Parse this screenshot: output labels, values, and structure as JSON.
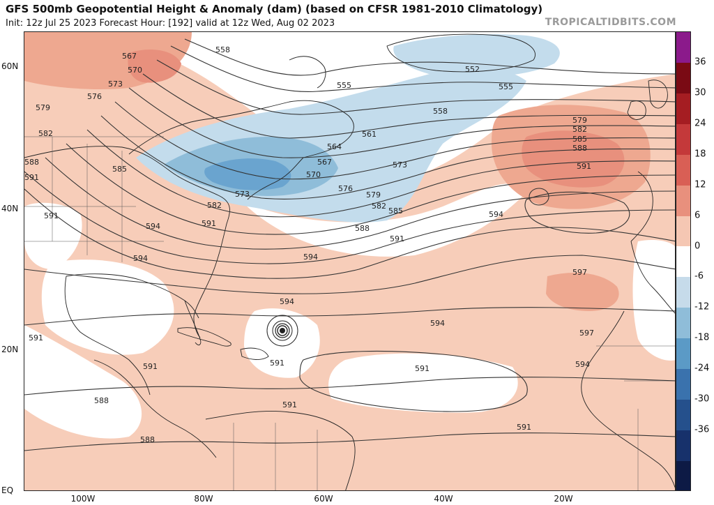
{
  "header": {
    "title": "GFS 500mb Geopotential Height & Anomaly (dam) (based on CFSR 1981-2010 Climatology)",
    "subtitle": "Init: 12z Jul 25 2023   Forecast Hour: [192]   valid at 12z Wed, Aug 02 2023",
    "brand": "TROPICALTIDBITS.COM"
  },
  "axes": {
    "latitude_labels": [
      "60N",
      "40N",
      "20N",
      "EQ"
    ],
    "longitude_labels": [
      "100W",
      "80W",
      "60W",
      "40W",
      "20W"
    ]
  },
  "colorbar": {
    "tick_labels": [
      "36",
      "30",
      "24",
      "18",
      "12",
      "6",
      "0",
      "-6",
      "-12",
      "-18",
      "-24",
      "-30",
      "-36"
    ],
    "colors": [
      "#8b1a8b",
      "#7a0a14",
      "#a51d22",
      "#c4393a",
      "#d95f55",
      "#e8907d",
      "#f5c7b3",
      "#ffffff",
      "#c6dbea",
      "#8fbdd9",
      "#5b9ac6",
      "#3a72ad",
      "#25508c",
      "#17316b",
      "#0d1a45"
    ]
  },
  "map": {
    "contour_labels": {
      "c552": "552",
      "c555a": "555",
      "c555b": "555",
      "c558a": "558",
      "c558b": "558",
      "c561": "561",
      "c564": "564",
      "c567a": "567",
      "c567b": "567",
      "c570a": "570",
      "c570b": "570",
      "c573a": "573",
      "c573b": "573",
      "c573c": "573",
      "c576a": "576",
      "c576b": "576",
      "c579a": "579",
      "c579b": "579",
      "c579c": "579",
      "c582a": "582",
      "c582b": "582",
      "c582c": "582",
      "c582d": "582",
      "c585a": "585",
      "c585b": "585",
      "c585c": "585",
      "c588a": "588",
      "c588b": "588",
      "c588c": "588",
      "c588d": "588",
      "c588e": "588",
      "c591a": "591",
      "c591b": "591",
      "c591c": "591",
      "c591d": "591",
      "c591e": "591",
      "c591f": "591",
      "c591g": "591",
      "c591h": "591",
      "c591i": "591",
      "c591j": "591",
      "c591k": "591",
      "c594a": "594",
      "c594b": "594",
      "c594c": "594",
      "c594d": "594",
      "c594e": "594",
      "c594f": "594",
      "c594g": "594",
      "c597a": "597",
      "c597b": "597"
    }
  }
}
